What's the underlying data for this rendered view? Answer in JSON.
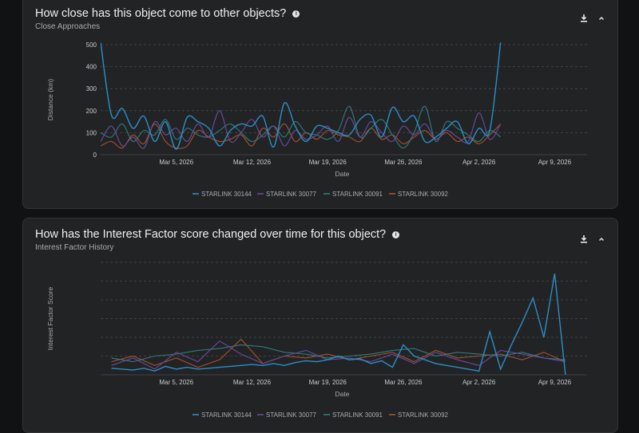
{
  "colors": {
    "background": "#111214",
    "card": "#222325",
    "grid": "#4a4b4d",
    "series": [
      "#2a8fc7",
      "#6c4a9e",
      "#2e7d7a",
      "#a8512e"
    ]
  },
  "icons": {
    "info": "info-icon",
    "download": "download-icon",
    "collapse": "chevron-up-icon"
  },
  "card1": {
    "title": "How close has this object come to other objects?",
    "subtitle": "Close Approaches"
  },
  "card2": {
    "title": "How has the Interest Factor score changed over time for this object?",
    "subtitle": "Interest Factor History"
  },
  "chart_data": [
    {
      "type": "line",
      "title": "Close Approaches",
      "xlabel": "Date",
      "ylabel": "Distance (km)",
      "x_ticks": [
        "Mar 5, 2026",
        "Mar 12, 2026",
        "Mar 19, 2026",
        "Mar 26, 2026",
        "Apr 2, 2026",
        "Apr 9, 2026"
      ],
      "x_range": [
        "2026-02-26",
        "2026-04-12"
      ],
      "ylim": [
        0,
        500
      ],
      "y_ticks": [
        0,
        100,
        200,
        300,
        400,
        500
      ],
      "grid": true,
      "legend": "bottom",
      "series": [
        {
          "name": "STARLINK 30144",
          "x": [
            "2026-02-26",
            "2026-02-27",
            "2026-02-28",
            "2026-03-01",
            "2026-03-02",
            "2026-03-03",
            "2026-03-04",
            "2026-03-05",
            "2026-03-06",
            "2026-03-07",
            "2026-03-08",
            "2026-03-09",
            "2026-03-10",
            "2026-03-11",
            "2026-03-12",
            "2026-03-13",
            "2026-03-14",
            "2026-03-15",
            "2026-03-16",
            "2026-03-17",
            "2026-03-18",
            "2026-03-19",
            "2026-03-20",
            "2026-03-21",
            "2026-03-22",
            "2026-03-23",
            "2026-03-24",
            "2026-03-25",
            "2026-03-26",
            "2026-03-27",
            "2026-03-28",
            "2026-03-29",
            "2026-03-30",
            "2026-03-31",
            "2026-04-01",
            "2026-04-02",
            "2026-04-03",
            "2026-04-04"
          ],
          "values": [
            510,
            180,
            210,
            120,
            175,
            60,
            150,
            25,
            170,
            150,
            120,
            40,
            110,
            140,
            130,
            175,
            35,
            235,
            130,
            60,
            130,
            120,
            100,
            90,
            160,
            180,
            80,
            215,
            150,
            175,
            60,
            80,
            120,
            150,
            50,
            120,
            110,
            510
          ]
        },
        {
          "name": "STARLINK 30077",
          "x": [
            "2026-02-26",
            "2026-02-27",
            "2026-02-28",
            "2026-03-01",
            "2026-03-02",
            "2026-03-03",
            "2026-03-04",
            "2026-03-05",
            "2026-03-06",
            "2026-03-07",
            "2026-03-08",
            "2026-03-09",
            "2026-03-10",
            "2026-03-11",
            "2026-03-12",
            "2026-03-13",
            "2026-03-14",
            "2026-03-15",
            "2026-03-16",
            "2026-03-17",
            "2026-03-18",
            "2026-03-19",
            "2026-03-20",
            "2026-03-21",
            "2026-03-22",
            "2026-03-23",
            "2026-03-24",
            "2026-03-25",
            "2026-03-26",
            "2026-03-27",
            "2026-03-28",
            "2026-03-29",
            "2026-03-30",
            "2026-03-31",
            "2026-04-01",
            "2026-04-02",
            "2026-04-03",
            "2026-04-04"
          ],
          "values": [
            60,
            130,
            40,
            80,
            30,
            150,
            90,
            120,
            60,
            140,
            80,
            200,
            60,
            100,
            160,
            80,
            130,
            40,
            110,
            70,
            90,
            130,
            60,
            170,
            80,
            150,
            100,
            60,
            130,
            90,
            140,
            70,
            110,
            80,
            60,
            190,
            70,
            140
          ]
        },
        {
          "name": "STARLINK 30091",
          "x": [
            "2026-02-26",
            "2026-02-27",
            "2026-02-28",
            "2026-03-01",
            "2026-03-02",
            "2026-03-03",
            "2026-03-04",
            "2026-03-05",
            "2026-03-06",
            "2026-03-07",
            "2026-03-08",
            "2026-03-09",
            "2026-03-10",
            "2026-03-11",
            "2026-03-12",
            "2026-03-13",
            "2026-03-14",
            "2026-03-15",
            "2026-03-16",
            "2026-03-17",
            "2026-03-18",
            "2026-03-19",
            "2026-03-20",
            "2026-03-21",
            "2026-03-22",
            "2026-03-23",
            "2026-03-24",
            "2026-03-25",
            "2026-03-26",
            "2026-03-27",
            "2026-03-28",
            "2026-03-29",
            "2026-03-30",
            "2026-03-31",
            "2026-04-01",
            "2026-04-02",
            "2026-04-03",
            "2026-04-04"
          ],
          "values": [
            100,
            80,
            140,
            60,
            110,
            90,
            160,
            70,
            120,
            90,
            80,
            110,
            140,
            100,
            60,
            90,
            130,
            80,
            150,
            100,
            90,
            70,
            110,
            220,
            80,
            120,
            160,
            90,
            30,
            100,
            220,
            60,
            150,
            120,
            90,
            60,
            110,
            80
          ]
        },
        {
          "name": "STARLINK 30092",
          "x": [
            "2026-02-26",
            "2026-02-27",
            "2026-02-28",
            "2026-03-01",
            "2026-03-02",
            "2026-03-03",
            "2026-03-04",
            "2026-03-05",
            "2026-03-06",
            "2026-03-07",
            "2026-03-08",
            "2026-03-09",
            "2026-03-10",
            "2026-03-11",
            "2026-03-12",
            "2026-03-13",
            "2026-03-14",
            "2026-03-15",
            "2026-03-16",
            "2026-03-17",
            "2026-03-18",
            "2026-03-19",
            "2026-03-20",
            "2026-03-21",
            "2026-03-22",
            "2026-03-23",
            "2026-03-24",
            "2026-03-25",
            "2026-03-26",
            "2026-03-27",
            "2026-03-28",
            "2026-03-29",
            "2026-03-30",
            "2026-03-31",
            "2026-04-01",
            "2026-04-02",
            "2026-04-03",
            "2026-04-04"
          ],
          "values": [
            40,
            60,
            30,
            90,
            50,
            140,
            60,
            30,
            40,
            110,
            80,
            60,
            70,
            90,
            40,
            120,
            80,
            140,
            60,
            100,
            70,
            110,
            90,
            80,
            60,
            120,
            70,
            90,
            50,
            80,
            110,
            70,
            100,
            60,
            80,
            50,
            90,
            140
          ]
        }
      ]
    },
    {
      "type": "line",
      "title": "Interest Factor History",
      "xlabel": "Date",
      "ylabel": "Interest Factor Score",
      "x_ticks": [
        "Mar 5, 2026",
        "Mar 12, 2026",
        "Mar 19, 2026",
        "Mar 26, 2026",
        "Apr 2, 2026",
        "Apr 9, 2026"
      ],
      "x_range": [
        "2026-02-26",
        "2026-04-12"
      ],
      "ylim": [
        0,
        6
      ],
      "grid": true,
      "legend": "bottom",
      "series": [
        {
          "name": "STARLINK 30144",
          "x": [
            "2026-02-27",
            "2026-02-28",
            "2026-03-01",
            "2026-03-02",
            "2026-03-03",
            "2026-03-04",
            "2026-03-05",
            "2026-03-06",
            "2026-03-07",
            "2026-03-08",
            "2026-03-09",
            "2026-03-10",
            "2026-03-11",
            "2026-03-12",
            "2026-03-13",
            "2026-03-14",
            "2026-03-15",
            "2026-03-16",
            "2026-03-17",
            "2026-03-18",
            "2026-03-19",
            "2026-03-20",
            "2026-03-21",
            "2026-03-22",
            "2026-03-23",
            "2026-03-24",
            "2026-03-25",
            "2026-03-26",
            "2026-03-27",
            "2026-03-28",
            "2026-03-29",
            "2026-03-30",
            "2026-03-31",
            "2026-04-01",
            "2026-04-02",
            "2026-04-03",
            "2026-04-04",
            "2026-04-05",
            "2026-04-06",
            "2026-04-07",
            "2026-04-08",
            "2026-04-09",
            "2026-04-10"
          ],
          "values": [
            0.35,
            0.3,
            0.25,
            0.35,
            0.2,
            0.45,
            0.3,
            0.4,
            0.3,
            0.35,
            0.4,
            0.45,
            0.5,
            0.55,
            0.5,
            0.6,
            0.5,
            0.65,
            0.75,
            0.7,
            0.8,
            1.0,
            0.8,
            0.85,
            0.6,
            0.75,
            0.4,
            1.6,
            1.0,
            0.8,
            0.6,
            0.5,
            0.4,
            0.3,
            0.2,
            2.3,
            0.3,
            1.6,
            2.8,
            4.1,
            2.0,
            5.4,
            0
          ]
        },
        {
          "name": "STARLINK 30077",
          "x": [
            "2026-02-27",
            "2026-03-01",
            "2026-03-03",
            "2026-03-05",
            "2026-03-07",
            "2026-03-09",
            "2026-03-11",
            "2026-03-13",
            "2026-03-15",
            "2026-03-17",
            "2026-03-19",
            "2026-03-21",
            "2026-03-23",
            "2026-03-25",
            "2026-03-27",
            "2026-03-29",
            "2026-03-31",
            "2026-04-02",
            "2026-04-04",
            "2026-04-06",
            "2026-04-08",
            "2026-04-10"
          ],
          "values": [
            0.5,
            0.9,
            0.3,
            1.2,
            0.7,
            1.8,
            1.1,
            0.6,
            1.0,
            1.3,
            0.8,
            0.9,
            0.7,
            1.1,
            0.6,
            1.2,
            0.8,
            0.5,
            1.3,
            1.1,
            0.9,
            0.7
          ]
        },
        {
          "name": "STARLINK 30091",
          "x": [
            "2026-02-27",
            "2026-03-01",
            "2026-03-03",
            "2026-03-05",
            "2026-03-07",
            "2026-03-09",
            "2026-03-11",
            "2026-03-13",
            "2026-03-15",
            "2026-03-17",
            "2026-03-19",
            "2026-03-21",
            "2026-03-23",
            "2026-03-25",
            "2026-03-27",
            "2026-03-29",
            "2026-03-31",
            "2026-04-02",
            "2026-04-04",
            "2026-04-06",
            "2026-04-08",
            "2026-04-10"
          ],
          "values": [
            0.9,
            0.7,
            1.0,
            1.1,
            1.3,
            1.4,
            1.6,
            1.5,
            1.2,
            1.1,
            0.9,
            1.0,
            1.1,
            1.3,
            1.4,
            1.0,
            1.2,
            1.1,
            1.0,
            1.2,
            0.9,
            0.8
          ]
        },
        {
          "name": "STARLINK 30092",
          "x": [
            "2026-02-27",
            "2026-03-01",
            "2026-03-03",
            "2026-03-05",
            "2026-03-07",
            "2026-03-09",
            "2026-03-11",
            "2026-03-13",
            "2026-03-15",
            "2026-03-17",
            "2026-03-19",
            "2026-03-21",
            "2026-03-23",
            "2026-03-25",
            "2026-03-27",
            "2026-03-29",
            "2026-03-31",
            "2026-04-02",
            "2026-04-04",
            "2026-04-06",
            "2026-04-08",
            "2026-04-10"
          ],
          "values": [
            0.7,
            1.0,
            0.5,
            0.9,
            0.4,
            0.8,
            1.9,
            0.6,
            1.0,
            0.9,
            1.1,
            0.8,
            1.0,
            1.2,
            0.7,
            1.3,
            0.9,
            1.0,
            1.1,
            0.8,
            1.2,
            0.7
          ]
        }
      ]
    }
  ]
}
